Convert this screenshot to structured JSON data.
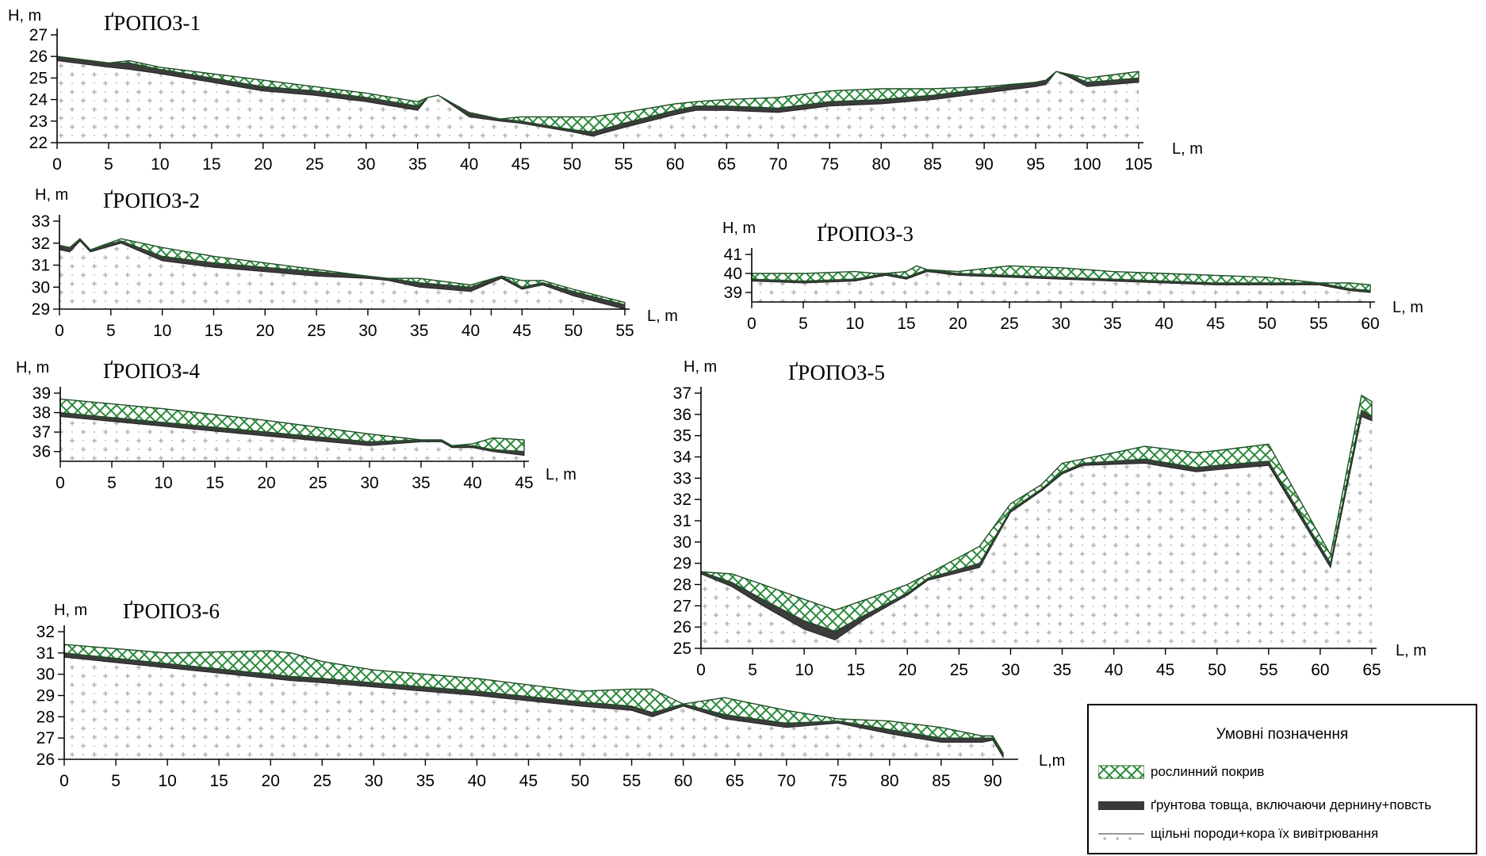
{
  "chart_data": [
    {
      "type": "area",
      "title": "ҐРОПОЗ-1",
      "xlabel": "L, m",
      "ylabel": "H, m",
      "xlim": [
        0,
        105
      ],
      "ylim": [
        22,
        27
      ],
      "xticks": [
        0,
        5,
        10,
        15,
        20,
        25,
        30,
        35,
        40,
        45,
        50,
        55,
        60,
        65,
        70,
        75,
        80,
        85,
        90,
        95,
        100,
        105
      ],
      "yticks": [
        22,
        23,
        24,
        25,
        26,
        27
      ],
      "x": [
        0,
        5,
        7,
        10,
        15,
        20,
        25,
        30,
        35,
        36,
        37,
        40,
        43,
        45,
        50,
        52,
        55,
        60,
        62,
        65,
        70,
        75,
        80,
        85,
        90,
        95,
        96,
        97,
        98,
        100,
        105
      ],
      "surface": [
        26.0,
        25.7,
        25.8,
        25.5,
        25.2,
        24.9,
        24.6,
        24.3,
        23.9,
        24.1,
        24.2,
        23.4,
        23.1,
        23.2,
        23.2,
        23.2,
        23.4,
        23.8,
        23.9,
        24.0,
        24.1,
        24.4,
        24.5,
        24.5,
        24.6,
        24.8,
        24.9,
        25.3,
        25.2,
        25.0,
        25.3
      ],
      "soil_top": [
        26.0,
        25.7,
        25.7,
        25.4,
        25.0,
        24.6,
        24.4,
        24.1,
        23.7,
        24.1,
        24.2,
        23.4,
        23.1,
        23.0,
        22.6,
        22.5,
        22.9,
        23.5,
        23.7,
        23.7,
        23.6,
        23.9,
        24.0,
        24.2,
        24.5,
        24.8,
        24.9,
        25.3,
        25.2,
        24.8,
        25.0
      ],
      "rock_top": [
        25.8,
        25.5,
        25.4,
        25.2,
        24.8,
        24.4,
        24.2,
        23.9,
        23.5,
        24.1,
        24.2,
        23.2,
        23.0,
        22.9,
        22.5,
        22.3,
        22.7,
        23.3,
        23.5,
        23.5,
        23.4,
        23.7,
        23.8,
        24.0,
        24.3,
        24.6,
        24.7,
        25.3,
        25.1,
        24.6,
        24.8
      ]
    },
    {
      "type": "area",
      "title": "ҐРОПОЗ-2",
      "xlabel": "L, m",
      "ylabel": "H, m",
      "xlim": [
        0,
        55
      ],
      "ylim": [
        29,
        33
      ],
      "xticks": [
        0,
        5,
        10,
        15,
        20,
        25,
        30,
        35,
        40,
        42,
        45,
        50,
        55
      ],
      "xtick_labels": [
        0,
        5,
        10,
        15,
        20,
        25,
        30,
        35,
        40,
        null,
        45,
        50,
        55
      ],
      "yticks": [
        29,
        30,
        31,
        32,
        33
      ],
      "x": [
        0,
        1,
        2,
        3,
        6,
        10,
        15,
        20,
        25,
        30,
        32,
        35,
        40,
        43,
        45,
        47,
        50,
        55
      ],
      "surface": [
        31.9,
        31.8,
        32.2,
        31.7,
        32.2,
        31.8,
        31.4,
        31.1,
        30.8,
        30.5,
        30.4,
        30.4,
        30.1,
        30.5,
        30.3,
        30.3,
        29.9,
        29.3
      ],
      "soil_top": [
        31.9,
        31.8,
        32.2,
        31.7,
        32.1,
        31.4,
        31.1,
        30.9,
        30.7,
        30.5,
        30.4,
        30.2,
        30.0,
        30.5,
        30.0,
        30.2,
        29.8,
        29.2
      ],
      "rock_top": [
        31.7,
        31.6,
        32.1,
        31.6,
        32.0,
        31.2,
        30.9,
        30.7,
        30.5,
        30.4,
        30.3,
        30.0,
        29.8,
        30.4,
        29.9,
        30.1,
        29.6,
        29.0
      ]
    },
    {
      "type": "area",
      "title": "ҐРОПОЗ-3",
      "xlabel": "L, m",
      "ylabel": "H, m",
      "xlim": [
        0,
        60
      ],
      "ylim": [
        38.5,
        41
      ],
      "xticks": [
        0,
        5,
        10,
        15,
        20,
        25,
        30,
        35,
        40,
        45,
        50,
        55,
        60
      ],
      "yticks": [
        39,
        40,
        41
      ],
      "x": [
        0,
        5,
        10,
        12,
        13,
        15,
        16,
        17,
        20,
        25,
        30,
        35,
        40,
        45,
        50,
        55,
        58,
        60
      ],
      "surface": [
        40.0,
        40.0,
        40.1,
        40.0,
        40.0,
        40.1,
        40.4,
        40.2,
        40.1,
        40.4,
        40.3,
        40.1,
        40.0,
        39.9,
        39.8,
        39.5,
        39.5,
        39.4
      ],
      "soil_top": [
        39.7,
        39.6,
        39.7,
        39.9,
        40.0,
        39.8,
        40.0,
        40.2,
        40.0,
        39.9,
        39.8,
        39.7,
        39.6,
        39.5,
        39.5,
        39.5,
        39.2,
        39.1
      ],
      "rock_top": [
        39.6,
        39.5,
        39.6,
        39.8,
        39.9,
        39.7,
        39.9,
        40.1,
        39.9,
        39.8,
        39.7,
        39.6,
        39.5,
        39.4,
        39.4,
        39.4,
        39.1,
        39.0
      ]
    },
    {
      "type": "area",
      "title": "ҐРОПОЗ-4",
      "xlabel": "L, m",
      "ylabel": "H, m",
      "xlim": [
        0,
        45
      ],
      "ylim": [
        35.5,
        39
      ],
      "xticks": [
        0,
        5,
        10,
        15,
        20,
        25,
        30,
        35,
        40,
        45
      ],
      "yticks": [
        36,
        37,
        38,
        39
      ],
      "x": [
        0,
        10,
        20,
        30,
        35,
        37,
        38,
        40,
        42,
        45
      ],
      "surface": [
        38.7,
        38.2,
        37.6,
        36.9,
        36.6,
        36.6,
        36.3,
        36.4,
        36.7,
        36.6
      ],
      "soil_top": [
        38.0,
        37.5,
        37.0,
        36.5,
        36.6,
        36.6,
        36.3,
        36.3,
        36.1,
        36.0
      ],
      "rock_top": [
        37.8,
        37.3,
        36.8,
        36.3,
        36.5,
        36.5,
        36.2,
        36.2,
        36.0,
        35.8
      ]
    },
    {
      "type": "area",
      "title": "ҐРОПОЗ-5",
      "xlabel": "L, m",
      "ylabel": "H, m",
      "xlim": [
        0,
        65
      ],
      "ylim": [
        25,
        37
      ],
      "xticks": [
        0,
        5,
        10,
        15,
        20,
        25,
        30,
        35,
        40,
        45,
        50,
        55,
        60,
        65
      ],
      "yticks": [
        25,
        26,
        27,
        28,
        29,
        30,
        31,
        32,
        33,
        34,
        35,
        36,
        37
      ],
      "x": [
        0,
        3,
        6,
        10,
        13,
        16,
        20,
        22,
        27,
        30,
        33,
        35,
        37,
        43,
        48,
        50,
        55,
        61,
        64,
        65
      ],
      "surface": [
        28.6,
        28.5,
        28.0,
        27.3,
        26.8,
        27.3,
        28.0,
        28.5,
        29.8,
        31.8,
        32.7,
        33.7,
        33.9,
        34.5,
        34.2,
        34.3,
        34.6,
        29.4,
        36.9,
        36.6
      ],
      "soil_top": [
        28.6,
        28.1,
        27.3,
        26.3,
        25.8,
        26.6,
        27.6,
        28.3,
        29.0,
        31.5,
        32.5,
        33.3,
        33.7,
        33.9,
        33.5,
        33.6,
        33.8,
        29.0,
        36.2,
        35.9
      ],
      "rock_top": [
        28.5,
        27.9,
        27.0,
        25.9,
        25.4,
        26.4,
        27.5,
        28.2,
        28.8,
        31.4,
        32.4,
        33.2,
        33.6,
        33.7,
        33.3,
        33.4,
        33.6,
        28.8,
        35.9,
        35.7
      ]
    },
    {
      "type": "area",
      "title": "ҐРОПОЗ-6",
      "xlabel": "L,m",
      "ylabel": "H, m",
      "xlim": [
        0,
        92
      ],
      "ylim": [
        26,
        32
      ],
      "xticks": [
        0,
        5,
        10,
        15,
        20,
        25,
        30,
        35,
        40,
        45,
        50,
        55,
        60,
        65,
        70,
        75,
        80,
        85,
        90
      ],
      "yticks": [
        26,
        27,
        28,
        29,
        30,
        31,
        32
      ],
      "x": [
        0,
        10,
        20,
        22,
        25,
        30,
        40,
        50,
        55,
        57,
        60,
        64,
        70,
        75,
        80,
        85,
        89,
        90,
        91
      ],
      "surface": [
        31.4,
        31.0,
        31.1,
        31.0,
        30.6,
        30.2,
        29.8,
        29.2,
        29.3,
        29.3,
        28.6,
        28.9,
        28.3,
        27.9,
        27.8,
        27.5,
        27.1,
        27.1,
        26.3
      ],
      "soil_top": [
        31.0,
        30.5,
        30.0,
        29.9,
        29.8,
        29.6,
        29.2,
        28.7,
        28.5,
        28.2,
        28.6,
        28.1,
        27.7,
        27.8,
        27.4,
        27.0,
        27.0,
        27.0,
        26.2
      ],
      "rock_top": [
        30.8,
        30.3,
        29.8,
        29.7,
        29.6,
        29.4,
        29.0,
        28.5,
        28.3,
        28.0,
        28.5,
        27.9,
        27.5,
        27.7,
        27.2,
        26.8,
        26.8,
        26.9,
        26.1
      ]
    }
  ],
  "legend": {
    "title": "Умовні позначення",
    "items": [
      {
        "label": "рослинний покрив",
        "swatch": "crosshatch-green",
        "color": "#2e8b2e"
      },
      {
        "label": "ґрунтова товща, включаючи дернину+повсть",
        "swatch": "solid-dark",
        "color": "#3a3a3a"
      },
      {
        "label": "щільні породи+кора їх вивітрювання",
        "swatch": "dotted-line",
        "color": "#888888"
      }
    ]
  }
}
